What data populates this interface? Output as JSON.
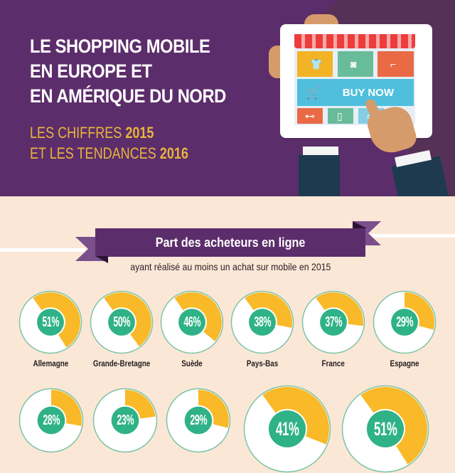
{
  "header": {
    "title_lines": [
      "LE SHOPPING MOBILE",
      "EN EUROPE ET",
      "EN AMÉRIQUE DU NORD"
    ],
    "subtitle_line1_text": "LES CHIFFRES ",
    "subtitle_line1_year": "2015",
    "subtitle_line2_text": "ET LES TENDANCES ",
    "subtitle_line2_year": "2016"
  },
  "illustration": {
    "button_label": "BUY NOW",
    "icons": [
      "tshirt-icon",
      "camera-icon",
      "high-heel-icon",
      "cart-icon",
      "watch-icon",
      "phone-icon",
      "monitor-icon"
    ]
  },
  "section": {
    "title": "Part des acheteurs en ligne",
    "subtitle": "ayant réalisé au moins un achat sur mobile en 2015"
  },
  "colors": {
    "purple": "#5c2d6b",
    "background": "#fbe7d6",
    "yellow": "#f9b928",
    "green": "#2fb287",
    "ring_outline": "#7cc4a6",
    "subtitle_gold": "#e8b33d"
  },
  "chart_data": {
    "type": "pie",
    "title": "Part des acheteurs en ligne",
    "subtitle": "ayant réalisé au moins un achat sur mobile en 2015",
    "unit": "%",
    "categories": [
      "Allemagne",
      "Grande-Bretagne",
      "Suède",
      "Pays-Bas",
      "France",
      "Espagne",
      "",
      "",
      "",
      "",
      ""
    ],
    "values": [
      51,
      50,
      46,
      38,
      37,
      29,
      28,
      23,
      29,
      41,
      51
    ],
    "labels": [
      "51%",
      "50%",
      "46%",
      "38%",
      "37%",
      "29%",
      "28%",
      "23%",
      "29%",
      "41%",
      "51%"
    ],
    "row1": [
      {
        "country": "Allemagne",
        "value": 51,
        "label": "51%"
      },
      {
        "country": "Grande-Bretagne",
        "value": 50,
        "label": "50%"
      },
      {
        "country": "Suède",
        "value": 46,
        "label": "46%"
      },
      {
        "country": "Pays-Bas",
        "value": 38,
        "label": "38%"
      },
      {
        "country": "France",
        "value": 37,
        "label": "37%"
      },
      {
        "country": "Espagne",
        "value": 29,
        "label": "29%"
      }
    ],
    "row2": [
      {
        "value": 28,
        "label": "28%"
      },
      {
        "value": 23,
        "label": "23%"
      },
      {
        "value": 29,
        "label": "29%"
      },
      {
        "value": 41,
        "label": "41%"
      },
      {
        "value": 51,
        "label": "51%"
      }
    ]
  }
}
